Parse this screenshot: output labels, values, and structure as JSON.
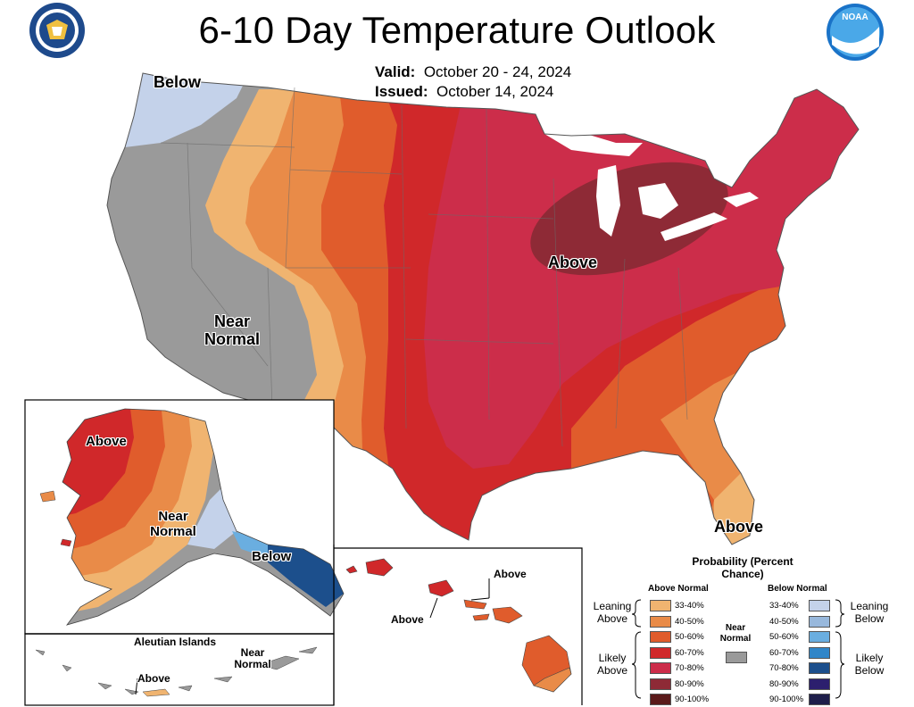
{
  "title": "6-10 Day Temperature Outlook",
  "valid_label": "Valid:",
  "valid_value": "October 20 - 24, 2024",
  "issued_label": "Issued:",
  "issued_value": "October 14, 2024",
  "logos": {
    "left": "department-of-commerce-seal",
    "right_text": "NOAA"
  },
  "labels": {
    "conus_below": "Below",
    "conus_near": "Near Normal",
    "conus_above_midwest": "Above",
    "conus_above_florida": "Above",
    "ak_above": "Above",
    "ak_near": "Near Normal",
    "ak_below": "Below",
    "aleutian_title": "Aleutian Islands",
    "aleutian_near": "Near Normal",
    "aleutian_above": "Above",
    "hi_above_1": "Above",
    "hi_above_2": "Above"
  },
  "legend": {
    "title": "Probability (Percent Chance)",
    "above_normal": "Above Normal",
    "below_normal": "Below Normal",
    "near_normal": "Near Normal",
    "leaning_above": "Leaning Above",
    "likely_above": "Likely Above",
    "leaning_below": "Leaning Below",
    "likely_below": "Likely Below",
    "above_bins": [
      {
        "range": "33-40%",
        "color": "#f0b470"
      },
      {
        "range": "40-50%",
        "color": "#e98b48"
      },
      {
        "range": "50-60%",
        "color": "#e05c2c"
      },
      {
        "range": "60-70%",
        "color": "#d0282a"
      },
      {
        "range": "70-80%",
        "color": "#cc2d4a"
      },
      {
        "range": "80-90%",
        "color": "#8e2a36"
      },
      {
        "range": "90-100%",
        "color": "#5a1a1a"
      }
    ],
    "below_bins": [
      {
        "range": "33-40%",
        "color": "#c4d2ea"
      },
      {
        "range": "40-50%",
        "color": "#98b8dc"
      },
      {
        "range": "50-60%",
        "color": "#6aaee0"
      },
      {
        "range": "60-70%",
        "color": "#3086c8"
      },
      {
        "range": "70-80%",
        "color": "#1c4f8c"
      },
      {
        "range": "80-90%",
        "color": "#2c1f6e"
      },
      {
        "range": "90-100%",
        "color": "#1e1e4a"
      }
    ],
    "near_color": "#9a9a9a"
  }
}
